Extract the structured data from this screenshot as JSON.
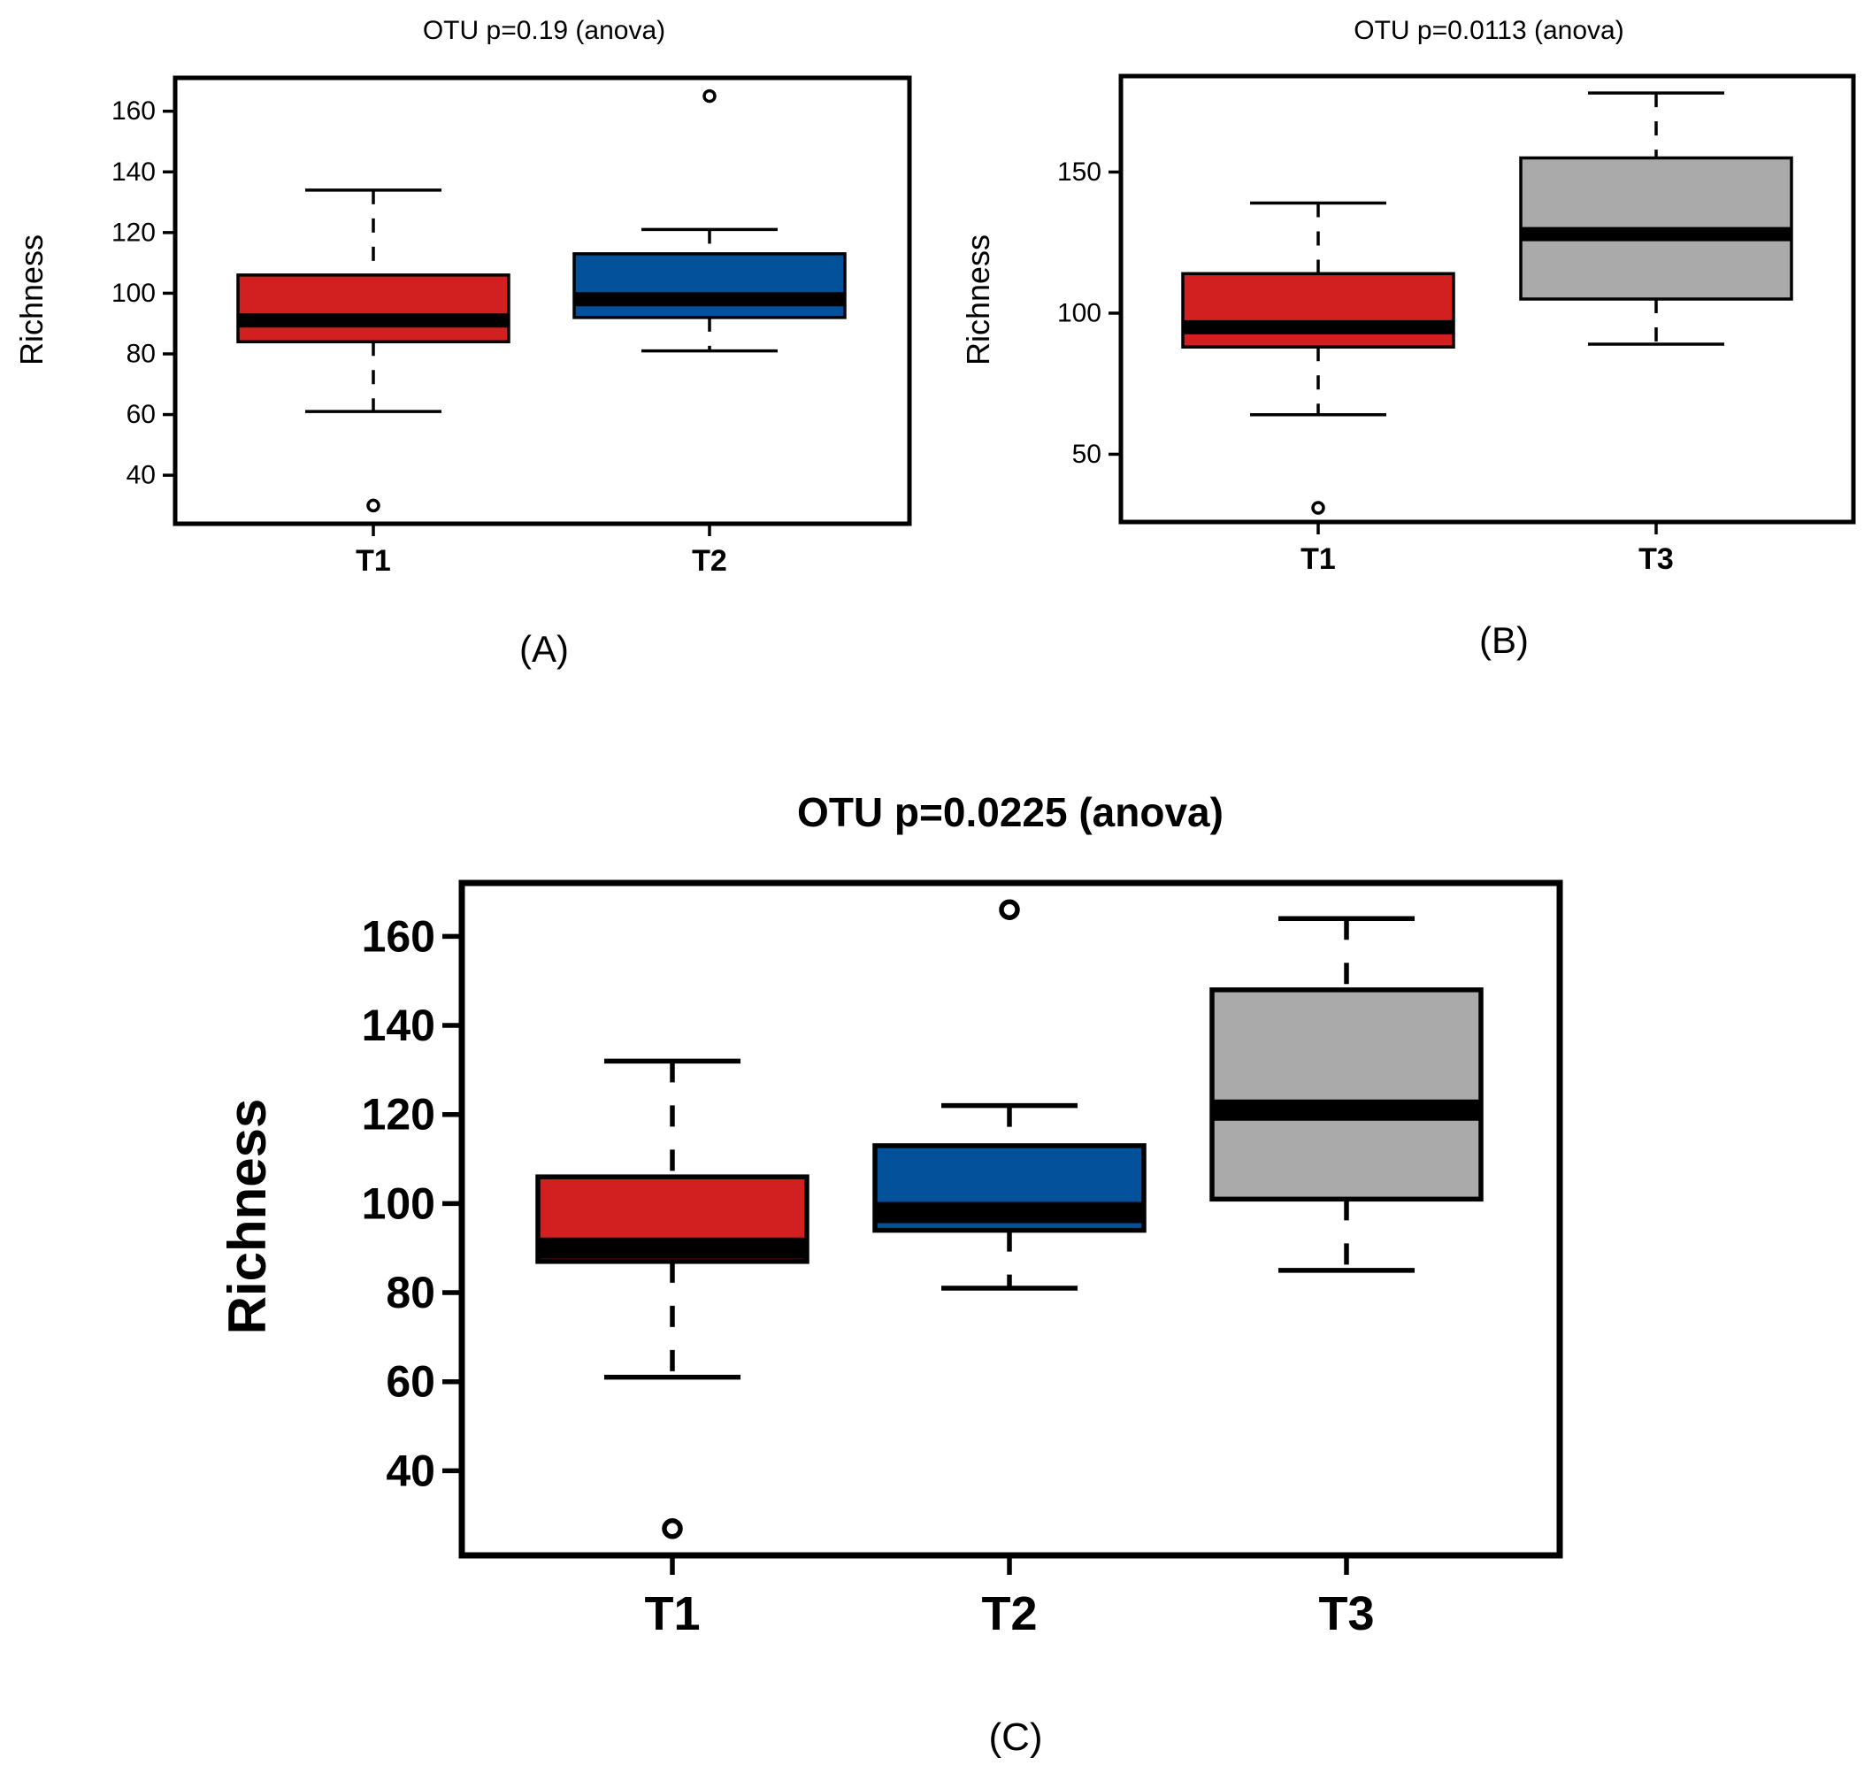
{
  "colors": {
    "T1": "#d22020",
    "T2": "#03519a",
    "T3": "#aaaaaa",
    "median": "#000000",
    "frame": "#000000"
  },
  "chart_data": [
    {
      "id": "A",
      "type": "box",
      "title": "OTU p=0.19 (anova)",
      "panel_label": "(A)",
      "ylabel": "Richness",
      "ylim": [
        24,
        171
      ],
      "yticks": [
        40,
        60,
        80,
        100,
        120,
        140,
        160
      ],
      "categories": [
        "T1",
        "T2"
      ],
      "boxes": [
        {
          "group": "T1",
          "lower_whisker": 61,
          "q1": 84,
          "median": 91,
          "q3": 106,
          "upper_whisker": 134,
          "outliers": [
            30
          ]
        },
        {
          "group": "T2",
          "lower_whisker": 81,
          "q1": 92,
          "median": 98,
          "q3": 113,
          "upper_whisker": 121,
          "outliers": [
            165
          ]
        }
      ]
    },
    {
      "id": "B",
      "type": "box",
      "title": "OTU p=0.0113 (anova)",
      "panel_label": "(B)",
      "ylabel": "Richness",
      "ylim": [
        26,
        184
      ],
      "yticks": [
        50,
        100,
        150
      ],
      "categories": [
        "T1",
        "T3"
      ],
      "boxes": [
        {
          "group": "T1",
          "lower_whisker": 64,
          "q1": 88,
          "median": 95,
          "q3": 114,
          "upper_whisker": 139,
          "outliers": [
            31
          ]
        },
        {
          "group": "T3",
          "lower_whisker": 89,
          "q1": 105,
          "median": 128,
          "q3": 155,
          "upper_whisker": 178,
          "outliers": []
        }
      ]
    },
    {
      "id": "C",
      "type": "box",
      "title": "OTU p=0.0225 (anova)",
      "panel_label": "(C)",
      "ylabel": "Richness",
      "ylim": [
        21,
        172
      ],
      "yticks": [
        40,
        60,
        80,
        100,
        120,
        140,
        160
      ],
      "categories": [
        "T1",
        "T2",
        "T3"
      ],
      "boxes": [
        {
          "group": "T1",
          "lower_whisker": 61,
          "q1": 87,
          "median": 90,
          "q3": 106,
          "upper_whisker": 132,
          "outliers": [
            27
          ]
        },
        {
          "group": "T2",
          "lower_whisker": 81,
          "q1": 94,
          "median": 98,
          "q3": 113,
          "upper_whisker": 122,
          "outliers": [
            166
          ]
        },
        {
          "group": "T3",
          "lower_whisker": 85,
          "q1": 101,
          "median": 121,
          "q3": 148,
          "upper_whisker": 164,
          "outliers": []
        }
      ]
    }
  ]
}
